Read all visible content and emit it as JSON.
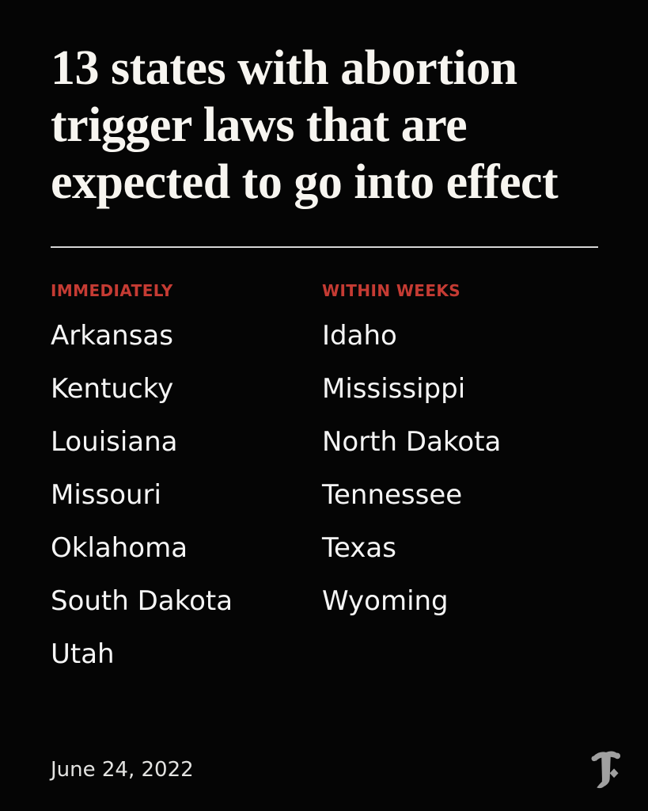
{
  "header": {
    "title_lines": [
      "13 states with abortion",
      "trigger laws that are",
      "expected to go into effect"
    ]
  },
  "columns": [
    {
      "label": "IMMEDIATELY",
      "states": [
        "Arkansas",
        "Kentucky",
        "Louisiana",
        "Missouri",
        "Oklahoma",
        "South Dakota",
        "Utah"
      ]
    },
    {
      "label": "WITHIN WEEKS",
      "states": [
        "Idaho",
        "Mississippi",
        "North Dakota",
        "Tennessee",
        "Texas",
        "Wyoming"
      ]
    }
  ],
  "footer": {
    "date": "June 24, 2022",
    "logo_icon": "nyt-t-logo"
  },
  "colors": {
    "background": "#050505",
    "headline": "#f7f5f0",
    "state": "#f5f5f5",
    "accent_red": "#c53b33",
    "divider": "#d6d6d6",
    "date": "#e3e3e1",
    "logo": "#a0a0a0"
  }
}
